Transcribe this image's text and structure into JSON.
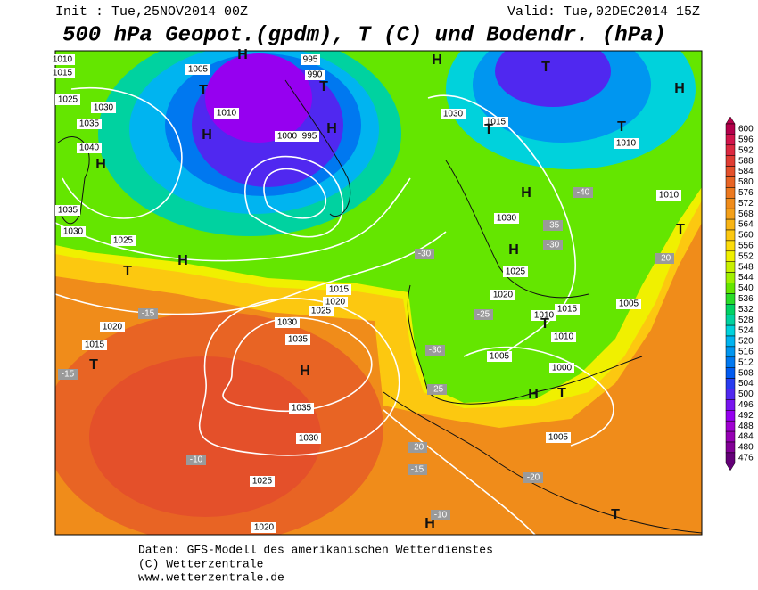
{
  "header": {
    "init": "Init : Tue,25NOV2014 00Z",
    "valid": "Valid: Tue,02DEC2014 15Z",
    "title": "500 hPa Geopot.(gpdm), T (C) und Bodendr. (hPa)"
  },
  "map": {
    "labels": [
      "1010",
      "1015",
      "1005",
      "H",
      "995",
      "990",
      "T",
      "1025",
      "1030",
      "1010",
      "1035",
      "H",
      "1040",
      "H",
      "1000",
      "995",
      "T",
      "H",
      "H",
      "T",
      "H",
      "1030",
      "1015",
      "T",
      "T",
      "1010",
      "H",
      "-40",
      "1010",
      "1035",
      "1030",
      "1025",
      "H",
      "T",
      "1030",
      "-35",
      "-30",
      "H",
      "1025",
      "1020",
      "-25",
      "1010",
      "1015",
      "1010",
      "T",
      "1005",
      "-20",
      "T",
      "1020",
      "1025",
      "1015",
      "1030",
      "1020",
      "-15",
      "1015",
      "T",
      "-15",
      "1035",
      "H",
      "1035",
      "1030",
      "1025",
      "-10",
      "1020",
      "1005",
      "1000",
      "H",
      "T",
      "1005",
      "-20",
      "-15",
      "-20",
      "H",
      "-10",
      "T",
      "-30",
      "-25",
      "-30"
    ]
  },
  "colorbar": {
    "levels": [
      600,
      596,
      592,
      588,
      584,
      580,
      576,
      572,
      568,
      564,
      560,
      556,
      552,
      548,
      544,
      540,
      536,
      532,
      528,
      524,
      520,
      516,
      512,
      508,
      504,
      500,
      496,
      492,
      488,
      484,
      480,
      476
    ],
    "colors": [
      "#b4004b",
      "#d2144b",
      "#dc2840",
      "#e03c32",
      "#e4502a",
      "#e86424",
      "#ec781e",
      "#f08c1a",
      "#f4a018",
      "#f8b414",
      "#fcc810",
      "#fcdc0c",
      "#f0f000",
      "#c8f000",
      "#a0f000",
      "#64e600",
      "#28dc28",
      "#00d264",
      "#00d2a0",
      "#00d2dc",
      "#00b4f0",
      "#0096f0",
      "#0078f0",
      "#005af0",
      "#283cf0",
      "#5028f0",
      "#7814f0",
      "#9600f0",
      "#a000d2",
      "#9600b4",
      "#820096",
      "#640078"
    ]
  },
  "footer": {
    "line1": "Daten: GFS-Modell des amerikanischen Wetterdienstes",
    "line2": "(C) Wetterzentrale",
    "line3": "www.wetterzentrale.de"
  }
}
